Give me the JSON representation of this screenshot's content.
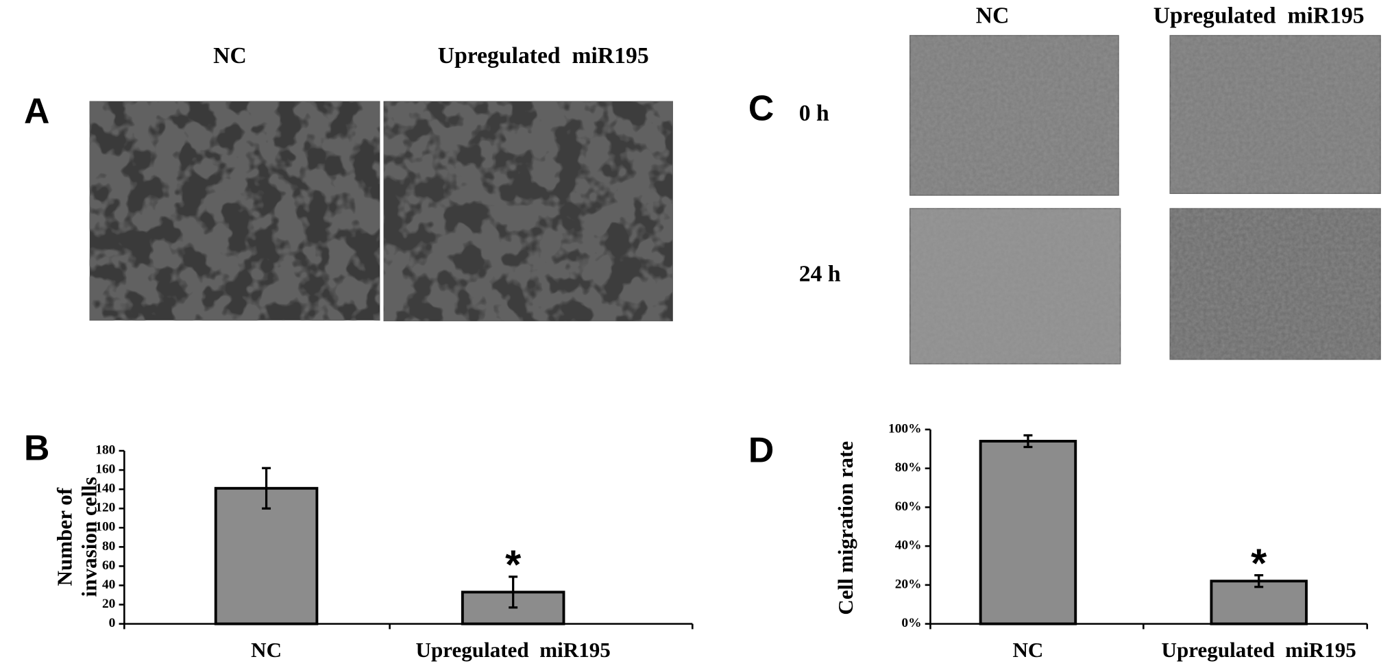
{
  "panels": {
    "A": {
      "label": "A",
      "columns": [
        "NC",
        "Upregulated  miR195"
      ]
    },
    "B": {
      "label": "B"
    },
    "C": {
      "label": "C",
      "columns": [
        "NC",
        "Upregulated  miR195"
      ],
      "rows": [
        "0 h",
        "24 h"
      ]
    },
    "D": {
      "label": "D"
    }
  },
  "chart_data": [
    {
      "type": "bar",
      "y_label": [
        "Number of",
        "invasion cells"
      ],
      "categories": [
        "NC",
        "Upregulated  miR195"
      ],
      "values": [
        141,
        33
      ],
      "errors": [
        21,
        16
      ],
      "color": "#8c8c8c",
      "ylim": [
        0,
        180
      ],
      "yticks": [
        0,
        20,
        40,
        60,
        80,
        100,
        120,
        140,
        160,
        180
      ],
      "significance_marker": "*"
    },
    {
      "type": "bar",
      "y_label": [
        "Cell migration rate"
      ],
      "categories": [
        "NC",
        "Upregulated  miR195"
      ],
      "values": [
        94,
        22
      ],
      "errors": [
        3,
        3
      ],
      "color": "#8c8c8c",
      "ylim": [
        0,
        100
      ],
      "yticks": [
        {
          "value": 0,
          "label": "0%"
        },
        {
          "value": 20,
          "label": "20%"
        },
        {
          "value": 40,
          "label": "40%"
        },
        {
          "value": 60,
          "label": "60%"
        },
        {
          "value": 80,
          "label": "80%"
        },
        {
          "value": 100,
          "label": "100%"
        }
      ],
      "significance_marker": "*"
    }
  ]
}
